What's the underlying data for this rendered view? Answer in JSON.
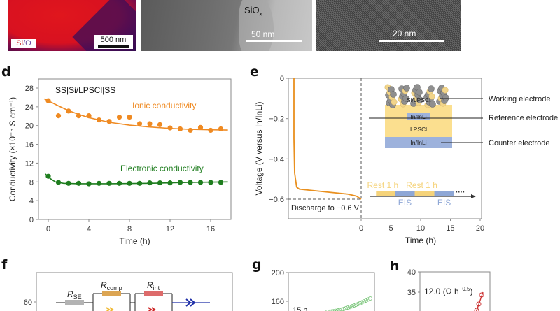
{
  "top_images": {
    "a": {
      "legend_si": "Si",
      "legend_sep": "/",
      "legend_o": "O",
      "scale_bar": "500 nm"
    },
    "b": {
      "label": "SiO",
      "label_sub": "x",
      "scale_bar": "50 nm"
    },
    "c": {
      "scale_bar": "20 nm"
    }
  },
  "panel_letters": {
    "d": "d",
    "e": "e",
    "f": "f",
    "g": "g",
    "h": "h"
  },
  "colors": {
    "ionic": "#ef8a22",
    "electronic": "#1e7d1e",
    "voltage_curve": "#e9901f",
    "rest": "#f5d37a",
    "eis": "#8ea7d6",
    "lpscl": "#fbdf8f",
    "in_inli": "#9db2dc",
    "r_se": "#b3b3b3",
    "r_comp": "#dca553",
    "r_int": "#dd6b6b",
    "cpe": "#1f2fa8",
    "panel_g_series": "#6cbf6c",
    "panel_h_series": "#cc3333"
  },
  "chart_data": [
    {
      "id": "d",
      "type": "scatter",
      "title": "SS|Si/LPSCl|SS",
      "xlabel": "Time (h)",
      "ylabel": "Conductivity (×10⁻⁶ S cm⁻¹)",
      "xlim": [
        -0.5,
        17.8
      ],
      "ylim": [
        0,
        30
      ],
      "xticks": [
        0,
        4,
        8,
        12,
        16
      ],
      "yticks": [
        0,
        4,
        8,
        12,
        16,
        20,
        24,
        28
      ],
      "grid": false,
      "series": [
        {
          "name": "Ionic conductivity",
          "x": [
            0,
            1,
            2,
            3,
            4,
            5,
            6,
            7,
            8,
            9,
            10,
            11,
            12,
            13,
            14,
            15,
            16,
            17
          ],
          "values": [
            25.3,
            22.1,
            23.1,
            22.1,
            22.1,
            21.2,
            20.9,
            21.8,
            21.8,
            20.4,
            20.4,
            20.2,
            19.5,
            19.3,
            19.0,
            19.6,
            19.0,
            19.3
          ],
          "fit": [
            [
              -0.4,
              25.7
            ],
            [
              1,
              24.2
            ],
            [
              2,
              23.2
            ],
            [
              3,
              22.4
            ],
            [
              4,
              21.7
            ],
            [
              5,
              21.2
            ],
            [
              6,
              20.7
            ],
            [
              8,
              20.1
            ],
            [
              10,
              19.7
            ],
            [
              12,
              19.4
            ],
            [
              14,
              19.2
            ],
            [
              16,
              19.1
            ],
            [
              17.7,
              19.05
            ]
          ]
        },
        {
          "name": "Electronic conductivity",
          "x": [
            0,
            1,
            2,
            3,
            4,
            5,
            6,
            7,
            8,
            9,
            10,
            11,
            12,
            13,
            14,
            15,
            16,
            17
          ],
          "values": [
            9.2,
            7.9,
            7.7,
            7.7,
            7.6,
            7.7,
            7.7,
            7.7,
            7.7,
            7.7,
            7.8,
            7.8,
            7.8,
            7.9,
            7.9,
            7.9,
            7.9,
            7.9
          ],
          "fit": [
            [
              -0.3,
              9.7
            ],
            [
              0.2,
              8.7
            ],
            [
              0.7,
              8.0
            ],
            [
              1.5,
              7.7
            ],
            [
              3,
              7.6
            ],
            [
              6,
              7.6
            ],
            [
              10,
              7.7
            ],
            [
              14,
              7.9
            ],
            [
              17.7,
              8.0
            ]
          ]
        }
      ]
    },
    {
      "id": "e",
      "type": "line",
      "xlabel": "Time (h)",
      "ylabel": "Voltage (V versus In/InLi)",
      "ylim": [
        -0.7,
        0
      ],
      "xlim": [
        0,
        20
      ],
      "xticks": [
        0,
        5,
        10,
        15,
        20
      ],
      "yticks": [
        0,
        -0.2,
        -0.4,
        -0.6
      ],
      "ytick_labels": [
        "0",
        "−0.2",
        "−0.4",
        "−0.6"
      ],
      "grid": false,
      "discharge_annotation": "Discharge to −0.6 V",
      "discharge_curve_fraction": [
        [
          0.0,
          0.0
        ],
        [
          0.0,
          -0.3
        ],
        [
          0.01,
          -0.47
        ],
        [
          0.04,
          -0.54
        ],
        [
          0.08,
          -0.55
        ],
        [
          0.5,
          -0.565
        ],
        [
          0.8,
          -0.575
        ],
        [
          0.93,
          -0.585
        ],
        [
          1.0,
          -0.6
        ]
      ],
      "schematic": {
        "layers": [
          "Si/LPSCl",
          "In/InLi",
          "LPSCl",
          "In/InLi"
        ],
        "callouts": [
          "Working electrode",
          "Reference electrode",
          "Counter electrode"
        ]
      },
      "protocol": {
        "segments": [
          {
            "label": "Rest 1 h",
            "kind": "rest",
            "start": 2.5,
            "end": 5.7
          },
          {
            "label": "EIS",
            "kind": "eis",
            "start": 5.7,
            "end": 9.0
          },
          {
            "label": "Rest 1 h",
            "kind": "rest",
            "start": 9.0,
            "end": 12.3
          },
          {
            "label": "EIS",
            "kind": "eis",
            "start": 12.3,
            "end": 15.6
          }
        ],
        "ellipsis": "····"
      }
    },
    {
      "id": "f",
      "type": "line",
      "yticks_visible": [
        60
      ],
      "circuit": {
        "r_se": "R",
        "r_se_sub": "SE",
        "r_comp": "R",
        "r_comp_sub": "comp",
        "r_int": "R",
        "r_int_sub": "int"
      }
    },
    {
      "id": "g",
      "type": "scatter",
      "yticks_visible": [
        200,
        160
      ],
      "annotation": "15 h"
    },
    {
      "id": "h",
      "type": "line",
      "yticks_visible": [
        40,
        35
      ],
      "slope_annotation": "12.0 (Ω h",
      "slope_exponent": "−0.5",
      "slope_close": ")"
    }
  ]
}
